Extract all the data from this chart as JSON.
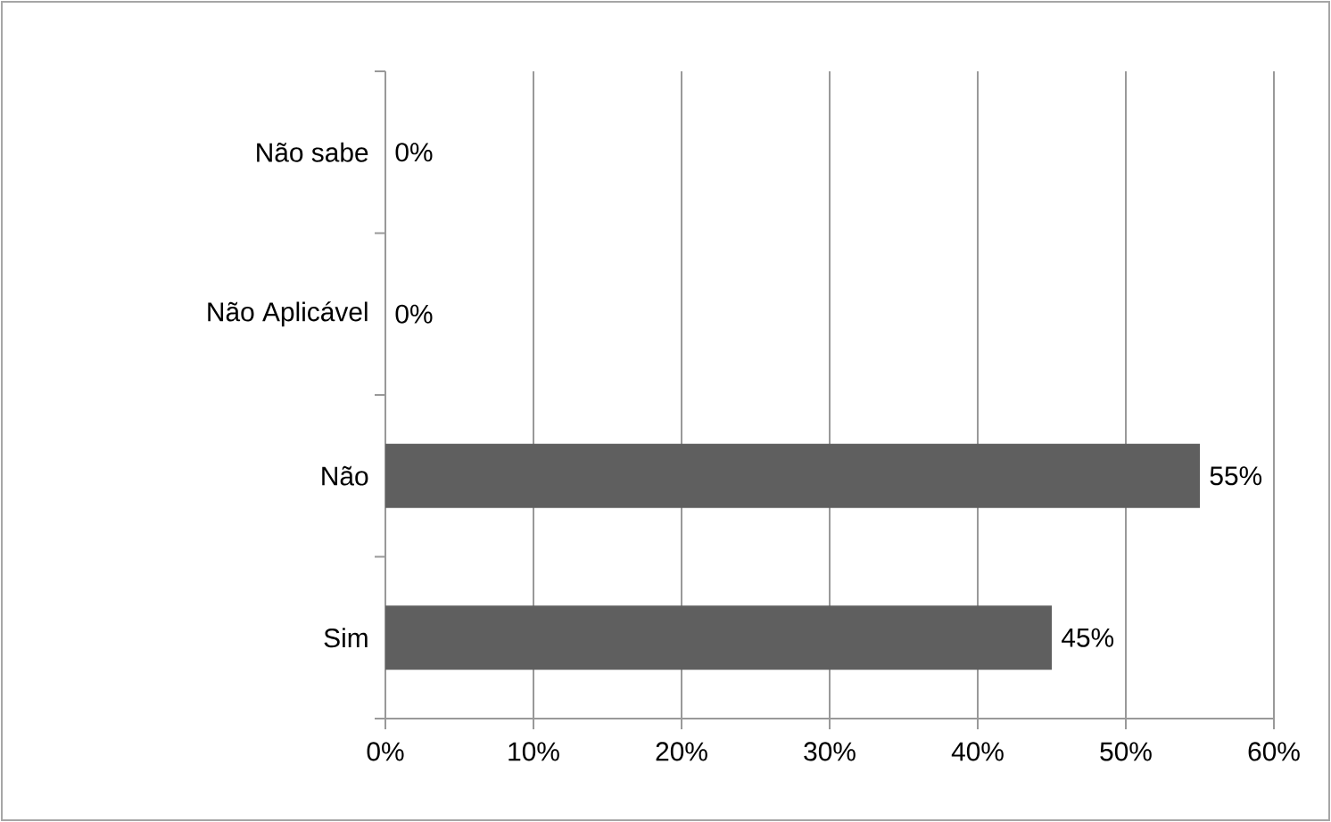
{
  "chart_data": {
    "type": "bar",
    "orientation": "horizontal",
    "categories": [
      "Não sabe",
      "Não Aplicável",
      "Não",
      "Sim"
    ],
    "values": [
      0,
      0,
      55,
      45
    ],
    "value_labels": [
      "0%",
      "0%",
      "55%",
      "45%"
    ],
    "color": "#5f5f5f",
    "xlim": [
      0,
      60
    ],
    "xticks": [
      {
        "value": 0,
        "label": "0%"
      },
      {
        "value": 10,
        "label": "10%"
      },
      {
        "value": 20,
        "label": "20%"
      },
      {
        "value": 30,
        "label": "30%"
      },
      {
        "value": 40,
        "label": "40%"
      },
      {
        "value": 50,
        "label": "50%"
      },
      {
        "value": 60,
        "label": "60%"
      }
    ],
    "grid": "x"
  }
}
